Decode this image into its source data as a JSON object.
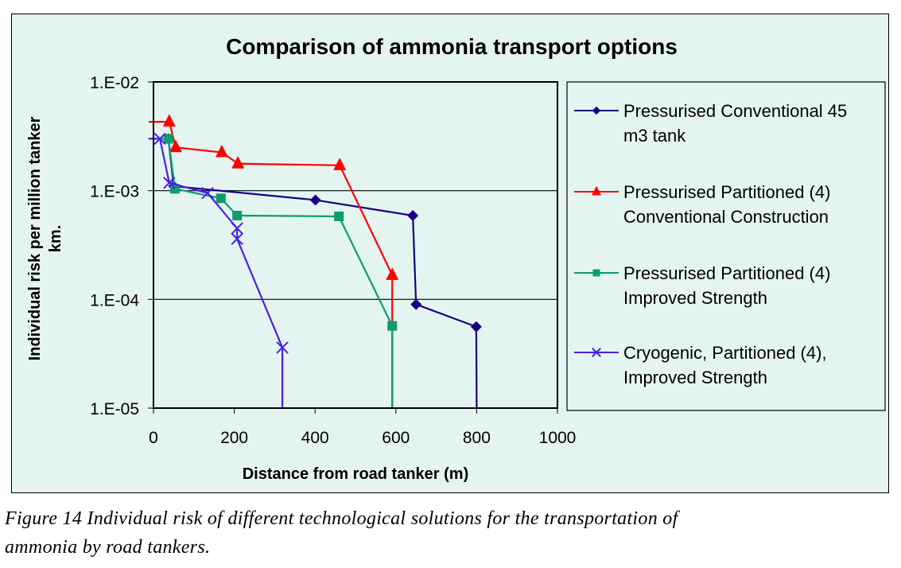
{
  "chart_data": {
    "type": "line",
    "title": "Comparison of ammonia transport options",
    "xlabel": "Distance from road tanker (m)",
    "ylabel": "Individual risk per million tanker km.",
    "yscale": "log",
    "xlim": [
      0,
      1000
    ],
    "ylim": [
      1e-05,
      0.01
    ],
    "x_ticks": [
      0,
      200,
      400,
      600,
      800,
      1000
    ],
    "x_tick_labels": [
      "0",
      "200",
      "400",
      "600",
      "800",
      "1000"
    ],
    "y_ticks": [
      0.01,
      0.001,
      0.0001,
      1e-05
    ],
    "y_tick_labels": [
      "1.E-02",
      "1.E-03",
      "1.E-04",
      "1.E-05"
    ],
    "grid": "horizontal major",
    "legend_position": "right",
    "series": [
      {
        "name": "Pressurised Conventional 45 m3 tank",
        "legend_lines": [
          "Pressurised Conventional 45",
          "m3 tank"
        ],
        "color": "#1a0080",
        "marker": "diamond",
        "points": [
          [
            -12,
            0.003,
            false
          ],
          [
            37,
            0.003,
            true
          ],
          [
            50,
            0.0011,
            true
          ],
          [
            401,
            0.00082,
            true
          ],
          [
            642,
            0.00059,
            true
          ],
          [
            650,
            9e-05,
            true
          ],
          [
            799,
            5.6e-05,
            true
          ],
          [
            800,
            1e-05,
            false
          ]
        ]
      },
      {
        "name": "Pressurised Partitioned (4) Conventional Construction",
        "legend_lines": [
          "Pressurised Partitioned (4)",
          "Conventional Construction"
        ],
        "color": "#ff0000",
        "marker": "triangle",
        "points": [
          [
            -12,
            0.0043,
            false
          ],
          [
            39,
            0.0043,
            true
          ],
          [
            55,
            0.0025,
            true
          ],
          [
            169,
            0.00225,
            true
          ],
          [
            209,
            0.00177,
            true
          ],
          [
            461,
            0.00171,
            true
          ],
          [
            591,
            0.000167,
            true
          ],
          [
            591,
            1e-05,
            false
          ]
        ]
      },
      {
        "name": "Pressurised Partitioned (4) Improved Strength",
        "legend_lines": [
          "Pressurised Partitioned (4)",
          "Improved Strength"
        ],
        "color": "#0e9c6a",
        "marker": "square",
        "points": [
          [
            -12,
            0.003,
            false
          ],
          [
            37,
            0.003,
            true
          ],
          [
            53,
            0.00104,
            true
          ],
          [
            167,
            0.00085,
            true
          ],
          [
            207,
            0.00059,
            true
          ],
          [
            459,
            0.00058,
            true
          ],
          [
            591,
            5.7e-05,
            true
          ],
          [
            591,
            1e-05,
            false
          ]
        ]
      },
      {
        "name": "Cryogenic, Partitioned (4), Improved Strength",
        "legend_lines": [
          "Cryogenic, Partitioned (4),",
          "Improved Strength"
        ],
        "color": "#4b1ee6",
        "marker": "x",
        "points": [
          [
            -12,
            0.003,
            false
          ],
          [
            16,
            0.003,
            true
          ],
          [
            39,
            0.00118,
            true
          ],
          [
            134,
            0.00095,
            true
          ],
          [
            207,
            0.00045,
            true
          ],
          [
            207,
            0.00036,
            true
          ],
          [
            319,
            3.6e-05,
            true
          ],
          [
            319,
            1e-05,
            false
          ]
        ]
      }
    ]
  },
  "caption": {
    "line1": "Figure 14 Individual risk of different technological solutions for the transportation of",
    "line2": "ammonia by road tankers."
  }
}
